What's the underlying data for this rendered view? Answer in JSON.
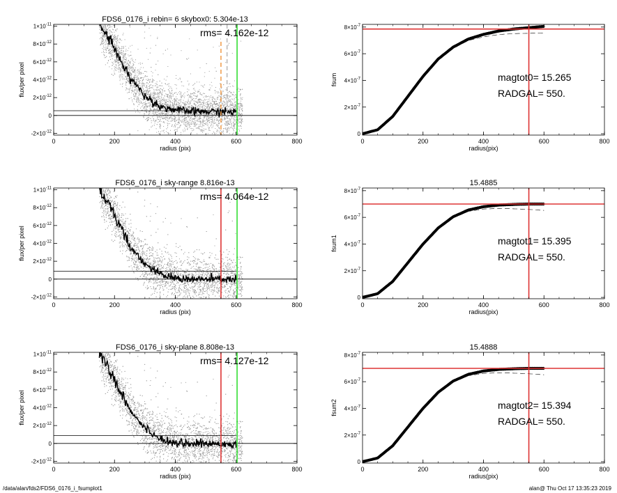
{
  "footer": {
    "left": "/data/alan/fds2/FDS6_0176_i_fsumplot1",
    "right": "alan@  Thu Oct 17 13:35:23 2019"
  },
  "chart_data": [
    {
      "type": "scatter",
      "title": "FDS6_0176_i rebin= 6    skybox0:  5.304e-13",
      "rms_text": "rms= 4.162e-12",
      "xlabel": "radius (pix)",
      "ylabel": "flux/per pixel",
      "xlim": [
        0,
        800
      ],
      "ylim": [
        -2.2e-12,
        1.02e-11
      ],
      "xticks": [
        "0",
        "200",
        "400",
        "600",
        "800"
      ],
      "yticks": [
        "-2×10-12",
        "0",
        "2×10-12",
        "4×10-12",
        "6×10-12",
        "8×10-12",
        "1×10-11"
      ],
      "sky_level": 5.304e-13,
      "vlines": [
        {
          "x": 550,
          "color": "#f0a050",
          "style": "dashed"
        },
        {
          "x": 570,
          "color": "#bbbbbb",
          "style": "dashed"
        },
        {
          "x": 603,
          "color": "#33dd33",
          "style": "solid"
        }
      ],
      "profile": [
        [
          150,
          1.02e-11
        ],
        [
          200,
          7.5e-12
        ],
        [
          250,
          4.3e-12
        ],
        [
          300,
          2.2e-12
        ],
        [
          350,
          1e-12
        ],
        [
          400,
          6e-13
        ],
        [
          450,
          4.5e-13
        ],
        [
          500,
          4.2e-13
        ],
        [
          550,
          4.2e-13
        ],
        [
          600,
          3.8e-13
        ]
      ],
      "grid": false
    },
    {
      "type": "line",
      "title": "",
      "xlabel": "radius(pix)",
      "ylabel": "fsum",
      "xlim": [
        0,
        800
      ],
      "ylim": [
        -1e-08,
        8.2e-07
      ],
      "xticks": [
        "0",
        "200",
        "400",
        "600",
        "800"
      ],
      "yticks": [
        "0",
        "2×10-7",
        "4×10-7",
        "6×10-7",
        "8×10-7"
      ],
      "annotation": [
        "magtot0=  15.265",
        "RADGAL=    550."
      ],
      "hline": 7.85e-07,
      "vline": 550,
      "curve": [
        [
          0,
          0
        ],
        [
          50,
          3e-08
        ],
        [
          100,
          1.3e-07
        ],
        [
          150,
          2.8e-07
        ],
        [
          200,
          4.3e-07
        ],
        [
          250,
          5.6e-07
        ],
        [
          300,
          6.5e-07
        ],
        [
          350,
          7.1e-07
        ],
        [
          400,
          7.45e-07
        ],
        [
          450,
          7.7e-07
        ],
        [
          500,
          7.85e-07
        ],
        [
          550,
          7.95e-07
        ],
        [
          600,
          8.05e-07
        ]
      ],
      "grid": false
    },
    {
      "type": "scatter",
      "title": "FDS6_0176_i sky-range  8.816e-13",
      "rms_text": "rms= 4.064e-12",
      "xlabel": "radius (pix)",
      "ylabel": "flux/per pixel",
      "xlim": [
        0,
        800
      ],
      "ylim": [
        -2.2e-12,
        1.02e-11
      ],
      "xticks": [
        "0",
        "200",
        "400",
        "600",
        "800"
      ],
      "yticks": [
        "-2×10-12",
        "0",
        "2×10-12",
        "4×10-12",
        "6×10-12",
        "8×10-12",
        "1×10-11"
      ],
      "sky_level": 8.816e-13,
      "vlines": [
        {
          "x": 550,
          "color": "#dd3333",
          "style": "solid"
        },
        {
          "x": 603,
          "color": "#33dd33",
          "style": "solid"
        }
      ],
      "profile": [
        [
          150,
          1.02e-11
        ],
        [
          200,
          7.2e-12
        ],
        [
          250,
          3.8e-12
        ],
        [
          300,
          1.7e-12
        ],
        [
          350,
          5e-13
        ],
        [
          400,
          1e-13
        ],
        [
          450,
          0
        ],
        [
          500,
          -5e-14
        ],
        [
          550,
          0
        ],
        [
          600,
          -1e-13
        ]
      ],
      "grid": false
    },
    {
      "type": "line",
      "title": "15.4885",
      "xlabel": "radius(pix)",
      "ylabel": "fsum1",
      "xlim": [
        0,
        800
      ],
      "ylim": [
        -1e-08,
        8.2e-07
      ],
      "xticks": [
        "0",
        "200",
        "400",
        "600",
        "800"
      ],
      "yticks": [
        "0",
        "2×10-7",
        "4×10-7",
        "6×10-7",
        "8×10-7"
      ],
      "annotation": [
        "magtot1=  15.395",
        "RADGAL=    550."
      ],
      "hline": 7e-07,
      "vline": 550,
      "curve": [
        [
          0,
          0
        ],
        [
          50,
          2.8e-08
        ],
        [
          100,
          1.2e-07
        ],
        [
          150,
          2.6e-07
        ],
        [
          200,
          4e-07
        ],
        [
          250,
          5.2e-07
        ],
        [
          300,
          6.05e-07
        ],
        [
          350,
          6.55e-07
        ],
        [
          400,
          6.8e-07
        ],
        [
          450,
          6.92e-07
        ],
        [
          500,
          6.97e-07
        ],
        [
          550,
          7e-07
        ],
        [
          600,
          7e-07
        ]
      ],
      "grid": false
    },
    {
      "type": "scatter",
      "title": "FDS6_0176_i sky-plane  8.808e-13",
      "rms_text": "rms= 4.127e-12",
      "xlabel": "radius (pix)",
      "ylabel": "flux/per pixel",
      "xlim": [
        0,
        800
      ],
      "ylim": [
        -2.2e-12,
        1.02e-11
      ],
      "xticks": [
        "0",
        "200",
        "400",
        "600",
        "800"
      ],
      "yticks": [
        "-2×10-12",
        "0",
        "2×10-12",
        "4×10-12",
        "6×10-12",
        "8×10-12",
        "1×10-11"
      ],
      "sky_level": 8.808e-13,
      "vlines": [
        {
          "x": 550,
          "color": "#dd3333",
          "style": "solid"
        },
        {
          "x": 603,
          "color": "#33dd33",
          "style": "solid"
        }
      ],
      "profile": [
        [
          150,
          1.02e-11
        ],
        [
          200,
          7.2e-12
        ],
        [
          250,
          3.8e-12
        ],
        [
          300,
          1.7e-12
        ],
        [
          350,
          5e-13
        ],
        [
          400,
          1e-13
        ],
        [
          450,
          0
        ],
        [
          500,
          -5e-14
        ],
        [
          550,
          0
        ],
        [
          600,
          -1e-13
        ]
      ],
      "grid": false
    },
    {
      "type": "line",
      "title": "15.4888",
      "xlabel": "radius(pix)",
      "ylabel": "fsum2",
      "xlim": [
        0,
        800
      ],
      "ylim": [
        -1e-08,
        8.2e-07
      ],
      "xticks": [
        "0",
        "200",
        "400",
        "600",
        "800"
      ],
      "yticks": [
        "0",
        "2×10-7",
        "4×10-7",
        "6×10-7",
        "8×10-7"
      ],
      "annotation": [
        "magtot2=  15.394",
        "RADGAL=    550."
      ],
      "hline": 7e-07,
      "vline": 550,
      "curve": [
        [
          0,
          0
        ],
        [
          50,
          2.8e-08
        ],
        [
          100,
          1.2e-07
        ],
        [
          150,
          2.6e-07
        ],
        [
          200,
          4e-07
        ],
        [
          250,
          5.2e-07
        ],
        [
          300,
          6.05e-07
        ],
        [
          350,
          6.55e-07
        ],
        [
          400,
          6.8e-07
        ],
        [
          450,
          6.92e-07
        ],
        [
          500,
          6.97e-07
        ],
        [
          550,
          7e-07
        ],
        [
          600,
          7e-07
        ]
      ],
      "grid": false
    }
  ]
}
